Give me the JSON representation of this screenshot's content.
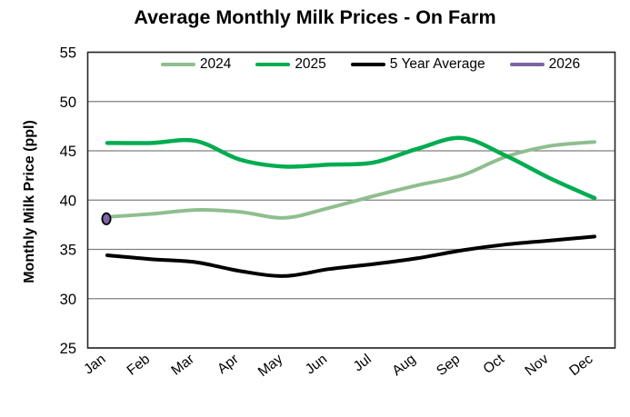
{
  "chart_data": {
    "type": "line",
    "title": "Average Monthly Milk Prices - On Farm",
    "ylabel": "Monthly Milk Price (ppl)",
    "xlabel": "",
    "ylim": [
      25,
      55
    ],
    "yticks": [
      55,
      50,
      45,
      40,
      35,
      30,
      25
    ],
    "grid": "horizontal",
    "legend_position": "inside-top",
    "categories": [
      "Jan",
      "Feb",
      "Mar",
      "Apr",
      "May",
      "Jun",
      "Jul",
      "Aug",
      "Sep",
      "Oct",
      "Nov",
      "Dec"
    ],
    "series": [
      {
        "name": "2024",
        "color": "#8FBE8F",
        "type": "line",
        "values": [
          38.3,
          38.6,
          39.0,
          38.8,
          38.2,
          39.2,
          40.4,
          41.5,
          42.5,
          44.4,
          45.5,
          45.9
        ]
      },
      {
        "name": "2025",
        "color": "#00AC50",
        "type": "line",
        "values": [
          45.8,
          45.8,
          46.0,
          44.1,
          43.4,
          43.6,
          43.8,
          45.2,
          46.3,
          44.5,
          42.2,
          40.2
        ]
      },
      {
        "name": "5 Year Average",
        "color": "#000000",
        "type": "line",
        "values": [
          34.4,
          34.0,
          33.7,
          32.8,
          32.3,
          33.0,
          33.5,
          34.1,
          34.9,
          35.5,
          35.9,
          36.3
        ]
      },
      {
        "name": "2026",
        "color": "#7E63A4",
        "type": "point",
        "marker_outline": "#000000",
        "values": [
          38.1,
          null,
          null,
          null,
          null,
          null,
          null,
          null,
          null,
          null,
          null,
          null
        ]
      }
    ]
  },
  "colors": {
    "gridline": "#7F7F7F",
    "plot_border": "#262626",
    "text": "#000000",
    "background": "#FFFFFF"
  }
}
